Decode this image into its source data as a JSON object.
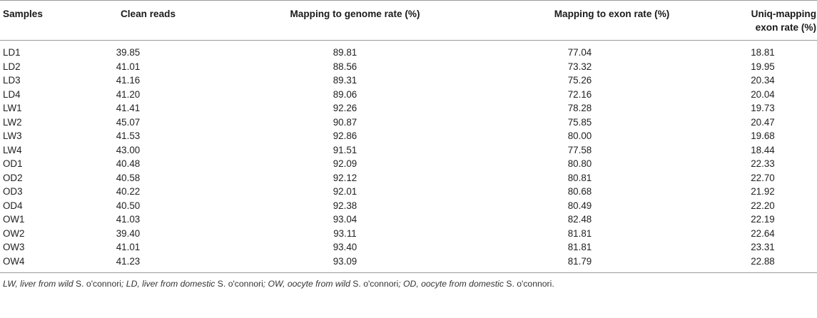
{
  "table": {
    "headers": {
      "samples": "Samples",
      "clean_reads": "Clean reads",
      "genome_rate": "Mapping to genome rate (%)",
      "exon_rate": "Mapping to exon rate (%)",
      "uniq_line1": "Uniq-mapping",
      "uniq_line2": "exon rate (%)"
    },
    "rows": [
      [
        "LD1",
        "39.85",
        "89.81",
        "77.04",
        "18.81"
      ],
      [
        "LD2",
        "41.01",
        "88.56",
        "73.32",
        "19.95"
      ],
      [
        "LD3",
        "41.16",
        "89.31",
        "75.26",
        "20.34"
      ],
      [
        "LD4",
        "41.20",
        "89.06",
        "72.16",
        "20.04"
      ],
      [
        "LW1",
        "41.41",
        "92.26",
        "78.28",
        "19.73"
      ],
      [
        "LW2",
        "45.07",
        "90.87",
        "75.85",
        "20.47"
      ],
      [
        "LW3",
        "41.53",
        "92.86",
        "80.00",
        "19.68"
      ],
      [
        "LW4",
        "43.00",
        "91.51",
        "77.58",
        "18.44"
      ],
      [
        "OD1",
        "40.48",
        "92.09",
        "80.80",
        "22.33"
      ],
      [
        "OD2",
        "40.58",
        "92.12",
        "80.81",
        "22.70"
      ],
      [
        "OD3",
        "40.22",
        "92.01",
        "80.68",
        "21.92"
      ],
      [
        "OD4",
        "40.50",
        "92.38",
        "80.49",
        "22.20"
      ],
      [
        "OW1",
        "41.03",
        "93.04",
        "82.48",
        "22.19"
      ],
      [
        "OW2",
        "39.40",
        "93.11",
        "81.81",
        "22.64"
      ],
      [
        "OW3",
        "41.01",
        "93.40",
        "81.81",
        "23.31"
      ],
      [
        "OW4",
        "41.23",
        "93.09",
        "81.79",
        "22.88"
      ]
    ]
  },
  "footnote": {
    "p1": "LW, liver from wild ",
    "s1": "S. o'connori",
    "p2": "; LD, liver from domestic ",
    "s2": "S. o'connori",
    "p3": "; OW, oocyte from wild ",
    "s3": "S. o'connori",
    "p4": "; OD, oocyte from domestic ",
    "s4": "S. o'connori",
    "end": "."
  }
}
